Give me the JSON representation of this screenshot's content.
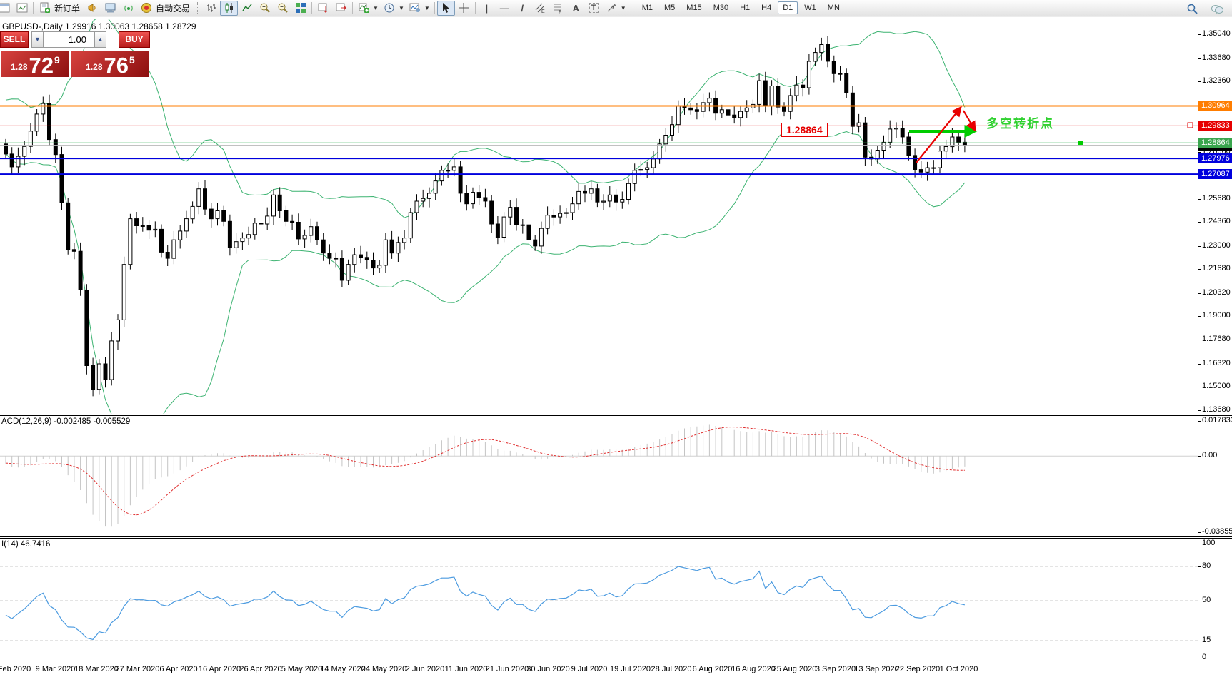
{
  "toolbar": {
    "new_order_label": "新订单",
    "autotrade_label": "自动交易",
    "glyph_channel": "E",
    "glyph_fibo": "F",
    "glyph_text": "A",
    "glyph_label": "T",
    "timeframes": [
      "M1",
      "M5",
      "M15",
      "M30",
      "H1",
      "H4",
      "D1",
      "W1",
      "MN"
    ],
    "active_timeframe": "D1"
  },
  "trade_panel": {
    "sell_label": "SELL",
    "buy_label": "BUY",
    "volume": "1.00",
    "sell_small": "1.28",
    "sell_big": "72",
    "sell_sup": "9",
    "buy_small": "1.28",
    "buy_big": "76",
    "buy_sup": "5"
  },
  "chart": {
    "title": "GBPUSD-,Daily  1.29916 1.30063 1.28658 1.28729",
    "macd_label": "ACD(12,26,9) -0.002485 -0.005529",
    "rsi_label": "I(14) 46.7416",
    "annotation_price": "1.28864",
    "annotation_text": "多空转折点",
    "price_ticks": [
      "1.35040",
      "1.33680",
      "1.32360",
      "1.28360",
      "1.25680",
      "1.24360",
      "1.23000",
      "1.21680",
      "1.20320",
      "1.19000",
      "1.17680",
      "1.16320",
      "1.15000",
      "1.13680"
    ],
    "macd_ticks": [
      "0.017833",
      "0.00",
      "-0.038559"
    ],
    "rsi_ticks": [
      "100",
      "80",
      "50",
      "15",
      "0"
    ],
    "dates": [
      "Feb 2020",
      "9 Mar 2020",
      "18 Mar 2020",
      "27 Mar 2020",
      "6 Apr 2020",
      "16 Apr 2020",
      "26 Apr 2020",
      "5 May 2020",
      "14 May 2020",
      "24 May 2020",
      "2 Jun 2020",
      "11 Jun 2020",
      "21 Jun 2020",
      "30 Jun 2020",
      "9 Jul 2020",
      "19 Jul 2020",
      "28 Jul 2020",
      "6 Aug 2020",
      "16 Aug 2020",
      "25 Aug 2020",
      "3 Sep 2020",
      "13 Sep 2020",
      "22 Sep 2020",
      "1 Oct 2020"
    ]
  },
  "chart_data": [
    {
      "type": "candlestick",
      "symbol": "GBPUSD",
      "period": "Daily",
      "last_ohlc": {
        "open": 1.29916,
        "high": 1.30063,
        "low": 1.28658,
        "close": 1.28729
      },
      "bid": {
        "price": 1.28729,
        "color": "#b8b8b8",
        "label_bg": "#000000"
      },
      "levels": [
        {
          "price": 1.30964,
          "color": "#ff7d00",
          "width": 2,
          "label_bg": "#ff7d00"
        },
        {
          "price": 1.29833,
          "color": "#dd0000",
          "width": 1,
          "label_bg": "#e60000"
        },
        {
          "price": 1.28864,
          "color": "#2eb050",
          "width": 1,
          "label_bg": "#3aa54e"
        },
        {
          "price": 1.27976,
          "color": "#0000dd",
          "width": 2,
          "label_bg": "#0000dd"
        },
        {
          "price": 1.27087,
          "color": "#0000dd",
          "width": 2,
          "label_bg": "#0000dd"
        }
      ],
      "overlays": {
        "bollinger": {
          "period": 20,
          "deviation": 2,
          "color": "#3cb371"
        }
      },
      "prehistory": [
        1.308,
        1.3015,
        1.31,
        1.311,
        1.3005,
        1.2995,
        1.3045,
        1.294,
        1.2955,
        1.2965,
        1.3,
        1.2885,
        1.295,
        1.288,
        1.2925,
        1.2985,
        1.3065,
        1.295,
        1.288
      ],
      "closes": [
        1.2823,
        1.275,
        1.281,
        1.2866,
        1.2953,
        1.305,
        1.311,
        1.2905,
        1.282,
        1.2545,
        1.228,
        1.227,
        1.205,
        1.162,
        1.1485,
        1.163,
        1.154,
        1.176,
        1.188,
        1.2195,
        1.2455,
        1.2415,
        1.2415,
        1.239,
        1.2395,
        1.2265,
        1.223,
        1.2335,
        1.2385,
        1.2455,
        1.2525,
        1.2625,
        1.251,
        1.2455,
        1.25,
        1.244,
        1.229,
        1.2325,
        1.2345,
        1.2365,
        1.243,
        1.2425,
        1.247,
        1.259,
        1.25,
        1.244,
        1.2435,
        1.234,
        1.236,
        1.241,
        1.2335,
        1.226,
        1.223,
        1.223,
        1.2105,
        1.2195,
        1.225,
        1.2235,
        1.222,
        1.2175,
        1.219,
        1.2335,
        1.226,
        1.232,
        1.2345,
        1.249,
        1.2555,
        1.257,
        1.26,
        1.267,
        1.273,
        1.273,
        1.275,
        1.26,
        1.254,
        1.2605,
        1.2575,
        1.2555,
        1.2425,
        1.235,
        1.2465,
        1.252,
        1.242,
        1.242,
        1.2335,
        1.23,
        1.24,
        1.2475,
        1.2465,
        1.2485,
        1.249,
        1.254,
        1.261,
        1.26,
        1.2625,
        1.255,
        1.2555,
        1.259,
        1.255,
        1.2565,
        1.2655,
        1.273,
        1.2735,
        1.2745,
        1.2795,
        1.288,
        1.293,
        1.299,
        1.3095,
        1.3085,
        1.3075,
        1.3065,
        1.3115,
        1.314,
        1.3055,
        1.3075,
        1.3045,
        1.303,
        1.3065,
        1.3085,
        1.3105,
        1.324,
        1.3095,
        1.321,
        1.309,
        1.3065,
        1.3155,
        1.3215,
        1.32,
        1.335,
        1.34,
        1.3445,
        1.335,
        1.328,
        1.328,
        1.317,
        1.298,
        1.3,
        1.2805,
        1.2795,
        1.2845,
        1.289,
        1.2965,
        1.297,
        1.292,
        1.2815,
        1.2735,
        1.272,
        1.2745,
        1.2745,
        1.284,
        1.2865,
        1.292,
        1.289,
        1.2873
      ]
    },
    {
      "type": "bar",
      "name": "MACD",
      "params": "12,26,9",
      "values": {
        "main": -0.002485,
        "signal": -0.005529
      },
      "axis_range": [
        0.017833,
        -0.038559
      ],
      "colors": {
        "histogram": "#c4c4c4",
        "signal": "#e03030"
      }
    },
    {
      "type": "line",
      "name": "RSI",
      "params": "14",
      "value": 46.7416,
      "levels": [
        80,
        50,
        15
      ],
      "axis_range": [
        0,
        100
      ],
      "colors": {
        "line": "#4c9be0",
        "levels": "#c8c8c8"
      }
    }
  ]
}
